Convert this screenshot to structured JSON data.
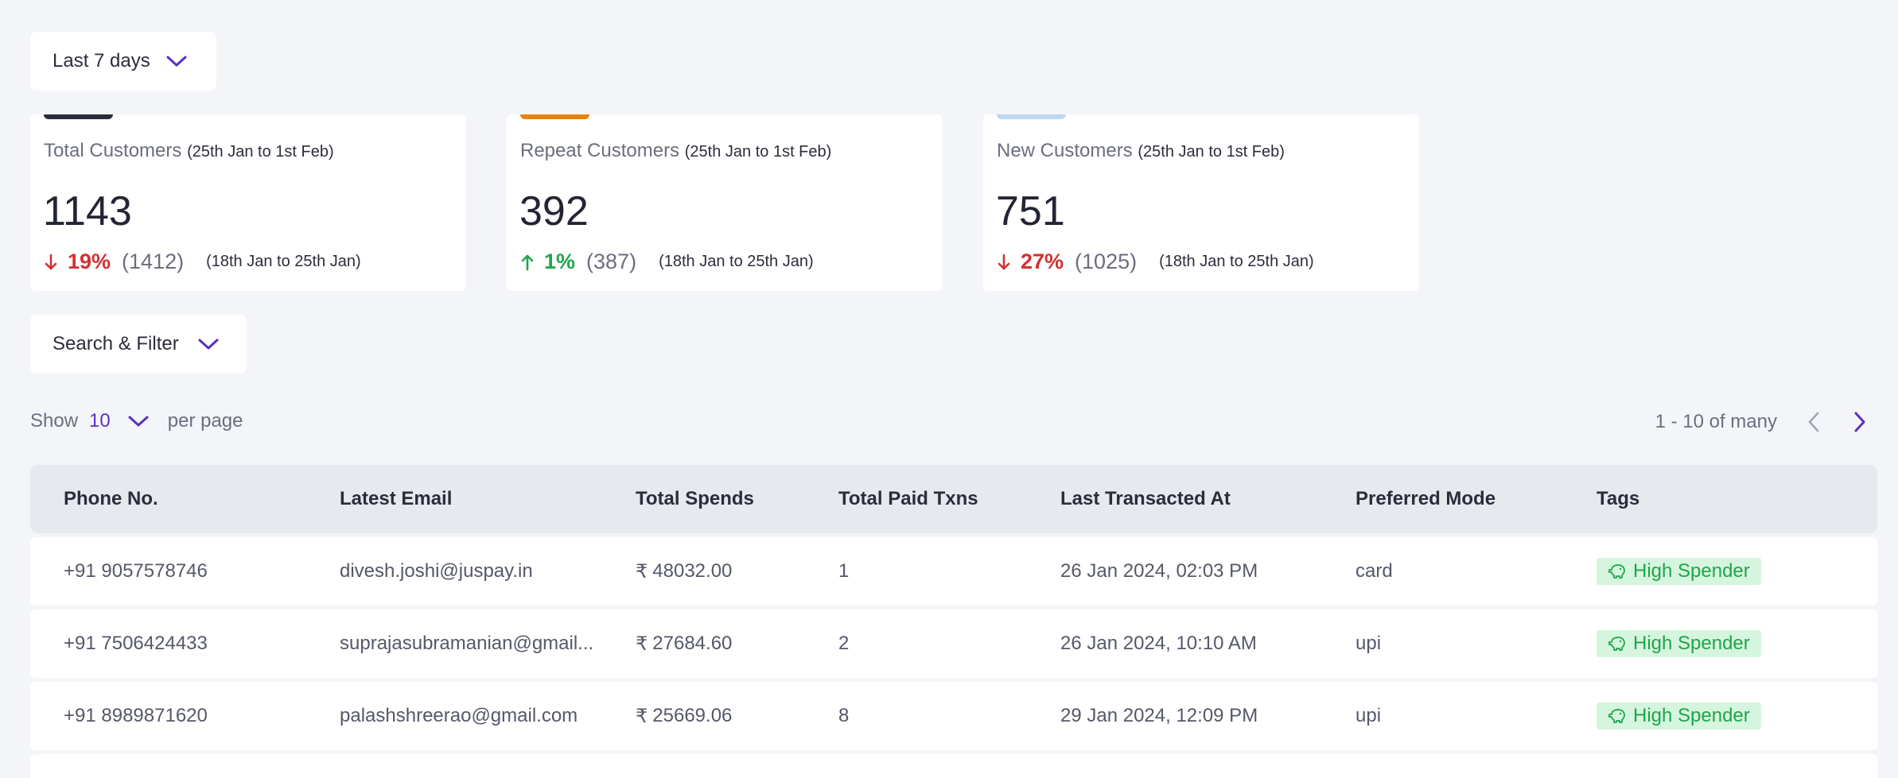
{
  "date_filter": {
    "label": "Last 7 days"
  },
  "cards": [
    {
      "title": "Total Customers",
      "range": "(25th Jan to 1st Feb)",
      "value": "1143",
      "direction": "down",
      "change": "19%",
      "previous": "(1412)",
      "previous_range": "(18th Jan to 25th Jan)",
      "accent_color": "#2b2d3b"
    },
    {
      "title": "Repeat Customers",
      "range": "(25th Jan to 1st Feb)",
      "value": "392",
      "direction": "up",
      "change": "1%",
      "previous": "(387)",
      "previous_range": "(18th Jan to 25th Jan)",
      "accent_color": "#e8820c"
    },
    {
      "title": "New Customers",
      "range": "(25th Jan to 1st Feb)",
      "value": "751",
      "direction": "down",
      "change": "27%",
      "previous": "(1025)",
      "previous_range": "(18th Jan to 25th Jan)",
      "accent_color": "#bcd8f0"
    }
  ],
  "search_filter": {
    "label": "Search & Filter"
  },
  "pagination": {
    "show_label": "Show",
    "per_page": "10",
    "per_page_label": "per page",
    "range_text": "1 - 10 of many"
  },
  "table": {
    "headers": [
      "Phone No.",
      "Latest Email",
      "Total Spends",
      "Total Paid Txns",
      "Last Transacted At",
      "Preferred Mode",
      "Tags"
    ],
    "rows": [
      {
        "phone": "+91 9057578746",
        "email": "divesh.joshi@juspay.in",
        "currency": "₹",
        "spends": "48032.00",
        "txns": "1",
        "last": "26 Jan 2024, 02:03 PM",
        "mode": "card",
        "tag": "High Spender"
      },
      {
        "phone": "+91 7506424433",
        "email": "suprajasubramanian@gmail...",
        "currency": "₹",
        "spends": "27684.60",
        "txns": "2",
        "last": "26 Jan 2024, 10:10 AM",
        "mode": "upi",
        "tag": "High Spender"
      },
      {
        "phone": "+91 8989871620",
        "email": "palashshreerao@gmail.com",
        "currency": "₹",
        "spends": "25669.06",
        "txns": "8",
        "last": "29 Jan 2024, 12:09 PM",
        "mode": "upi",
        "tag": "High Spender"
      }
    ]
  },
  "colors": {
    "accent_purple": "#5b2fc4",
    "down_red": "#d32f2f",
    "up_green": "#1ea64a",
    "tag_bg": "#d6f5de"
  },
  "icons": {
    "dropdown": "chevron-down-icon",
    "tag": "piggy-bank-icon",
    "prev": "chevron-left-icon",
    "next": "chevron-right-icon"
  }
}
